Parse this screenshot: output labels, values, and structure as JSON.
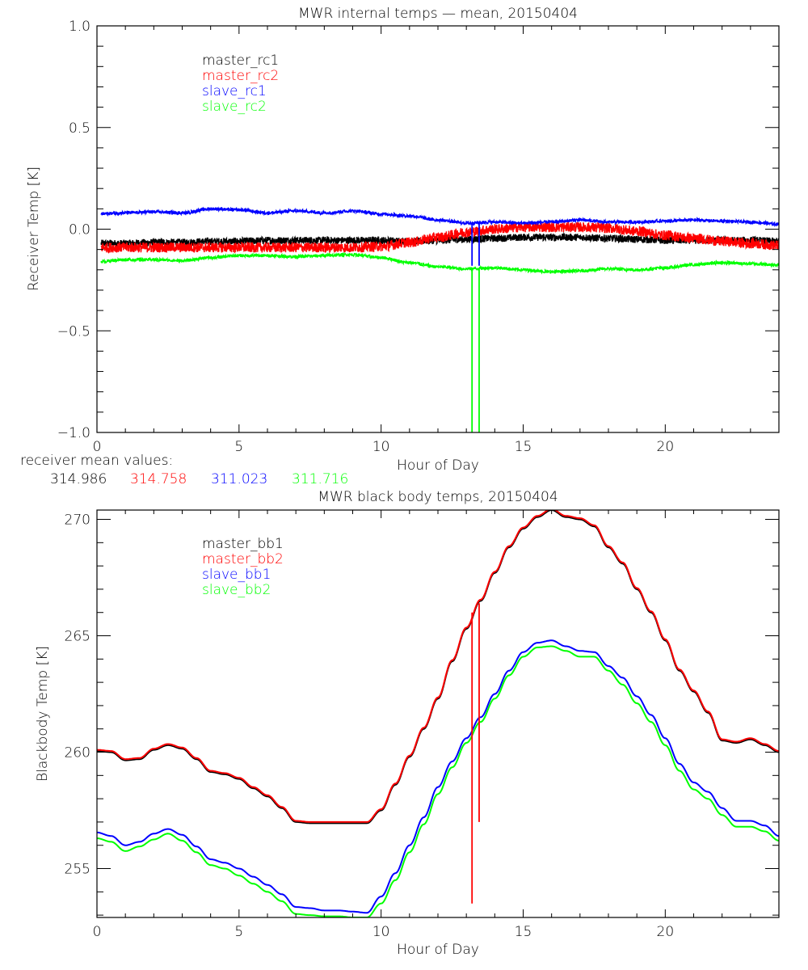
{
  "chart_data": [
    {
      "type": "line",
      "title": "MWR internal temps — mean, 20150404",
      "xlabel": "Hour of Day",
      "ylabel": "Receiver Temp [K]",
      "xlim": [
        0,
        24
      ],
      "ylim": [
        -1.0,
        1.0
      ],
      "xticks": [
        0,
        5,
        10,
        15,
        20
      ],
      "xtick_labels": [
        "0",
        "5",
        "10",
        "15",
        "20"
      ],
      "yticks": [
        -1.0,
        -0.5,
        0.0,
        0.5,
        1.0
      ],
      "ytick_labels": [
        "−1.0",
        "−0.5",
        "0.0",
        "0.5",
        "1.0"
      ],
      "x_minor_step": 1,
      "y_minor_step": 0.1,
      "grid": false,
      "legend_position": "top-left",
      "noise_band": 0.02,
      "x": [
        0,
        1,
        2,
        3,
        4,
        5,
        6,
        7,
        8,
        9,
        10,
        11,
        12,
        13,
        14,
        15,
        16,
        17,
        18,
        19,
        20,
        21,
        22,
        23,
        24
      ],
      "series": [
        {
          "name": "master_rc1",
          "color": "#000000",
          "noise": 0.018,
          "values": [
            -0.07,
            -0.07,
            -0.065,
            -0.065,
            -0.06,
            -0.06,
            -0.055,
            -0.055,
            -0.055,
            -0.055,
            -0.055,
            -0.06,
            -0.055,
            -0.05,
            -0.045,
            -0.04,
            -0.04,
            -0.04,
            -0.045,
            -0.05,
            -0.055,
            -0.055,
            -0.055,
            -0.055,
            -0.06
          ]
        },
        {
          "name": "master_rc2",
          "color": "#ff0000",
          "noise": 0.025,
          "values": [
            -0.09,
            -0.09,
            -0.09,
            -0.09,
            -0.09,
            -0.09,
            -0.09,
            -0.09,
            -0.09,
            -0.09,
            -0.085,
            -0.065,
            -0.04,
            -0.015,
            0.0,
            0.01,
            0.01,
            0.01,
            0.005,
            -0.01,
            -0.03,
            -0.045,
            -0.06,
            -0.07,
            -0.08
          ]
        },
        {
          "name": "slave_rc1",
          "color": "#0000ff",
          "noise": 0.008,
          "values": [
            0.075,
            0.08,
            0.085,
            0.08,
            0.1,
            0.095,
            0.08,
            0.09,
            0.08,
            0.09,
            0.075,
            0.065,
            0.045,
            0.03,
            0.035,
            0.03,
            0.035,
            0.045,
            0.035,
            0.035,
            0.04,
            0.045,
            0.04,
            0.035,
            0.025
          ]
        },
        {
          "name": "slave_rc2",
          "color": "#00ff00",
          "noise": 0.008,
          "values": [
            -0.16,
            -0.15,
            -0.15,
            -0.155,
            -0.14,
            -0.13,
            -0.13,
            -0.135,
            -0.13,
            -0.125,
            -0.14,
            -0.165,
            -0.185,
            -0.195,
            -0.19,
            -0.2,
            -0.21,
            -0.205,
            -0.195,
            -0.2,
            -0.19,
            -0.175,
            -0.165,
            -0.17,
            -0.175
          ]
        }
      ],
      "spikes": [
        {
          "series": "slave_rc1",
          "x": 13.2,
          "from": 0.03,
          "to": -0.18
        },
        {
          "series": "slave_rc1",
          "x": 13.45,
          "from": 0.03,
          "to": -0.18
        },
        {
          "series": "slave_rc2",
          "x": 13.2,
          "from": -0.19,
          "to": -1.0
        },
        {
          "series": "slave_rc2",
          "x": 13.45,
          "from": -0.19,
          "to": -1.0
        }
      ],
      "annotation": {
        "label": "receiver mean values:",
        "values": [
          {
            "text": "314.986",
            "color": "#000000"
          },
          {
            "text": "314.758",
            "color": "#ff0000"
          },
          {
            "text": "311.023",
            "color": "#0000ff"
          },
          {
            "text": "311.716",
            "color": "#00ff00"
          }
        ]
      }
    },
    {
      "type": "line",
      "title": "MWR black body temps, 20150404",
      "xlabel": "Hour of Day",
      "ylabel": "Blackbody Temp [K]",
      "xlim": [
        0,
        24
      ],
      "ylim": [
        252.9,
        270.4
      ],
      "xticks": [
        0,
        5,
        10,
        15,
        20
      ],
      "xtick_labels": [
        "0",
        "5",
        "10",
        "15",
        "20"
      ],
      "yticks": [
        255,
        260,
        265,
        270
      ],
      "ytick_labels": [
        "255",
        "260",
        "265",
        "270"
      ],
      "x_minor_step": 1,
      "y_minor_step": 1,
      "grid": false,
      "legend_position": "top-left",
      "x": [
        0,
        0.5,
        1,
        1.5,
        2,
        2.5,
        3,
        3.5,
        4,
        4.5,
        5,
        5.5,
        6,
        6.5,
        7,
        7.5,
        8,
        8.5,
        9,
        9.5,
        10,
        10.5,
        11,
        11.5,
        12,
        12.5,
        13,
        13.5,
        14,
        14.5,
        15,
        15.5,
        16,
        16.5,
        17,
        17.5,
        18,
        18.5,
        19,
        19.5,
        20,
        20.5,
        21,
        21.5,
        22,
        22.5,
        23,
        23.5,
        24
      ],
      "series": [
        {
          "name": "master_bb1",
          "color": "#000000",
          "values": [
            260.05,
            260.0,
            259.65,
            259.7,
            260.1,
            260.3,
            260.15,
            259.7,
            259.15,
            259.05,
            258.85,
            258.45,
            258.1,
            257.6,
            257.0,
            256.95,
            256.95,
            256.95,
            256.95,
            256.95,
            257.5,
            258.6,
            259.8,
            261.0,
            262.3,
            263.9,
            265.3,
            266.5,
            267.7,
            268.8,
            269.6,
            270.1,
            270.4,
            270.1,
            270.0,
            269.7,
            268.8,
            268.1,
            267.0,
            266.0,
            264.8,
            263.5,
            262.6,
            261.7,
            260.5,
            260.4,
            260.55,
            260.3,
            260.0
          ]
        },
        {
          "name": "master_bb2",
          "color": "#ff0000",
          "values": [
            260.1,
            260.05,
            259.7,
            259.75,
            260.15,
            260.35,
            260.2,
            259.75,
            259.2,
            259.1,
            258.9,
            258.5,
            258.15,
            257.65,
            257.05,
            257.0,
            257.0,
            257.0,
            257.0,
            257.0,
            257.55,
            258.65,
            259.85,
            261.05,
            262.35,
            263.95,
            265.35,
            266.55,
            267.75,
            268.85,
            269.65,
            270.15,
            270.45,
            270.15,
            270.05,
            269.75,
            268.85,
            268.15,
            267.05,
            266.05,
            264.85,
            263.55,
            262.65,
            261.75,
            260.55,
            260.45,
            260.6,
            260.35,
            260.05
          ]
        },
        {
          "name": "slave_bb1",
          "color": "#0000ff",
          "values": [
            256.55,
            256.4,
            256.0,
            256.15,
            256.5,
            256.7,
            256.45,
            255.95,
            255.4,
            255.25,
            255.0,
            254.65,
            254.3,
            253.9,
            253.35,
            253.3,
            253.2,
            253.2,
            253.15,
            253.1,
            253.8,
            254.8,
            256.0,
            257.2,
            258.5,
            259.6,
            260.6,
            261.5,
            262.5,
            263.5,
            264.3,
            264.7,
            264.8,
            264.55,
            264.35,
            264.3,
            263.7,
            263.2,
            262.4,
            261.6,
            260.6,
            259.5,
            258.7,
            258.3,
            257.6,
            257.05,
            257.05,
            256.85,
            256.4
          ]
        },
        {
          "name": "slave_bb2",
          "color": "#00ff00",
          "values": [
            256.3,
            256.15,
            255.75,
            255.95,
            256.25,
            256.5,
            256.2,
            255.7,
            255.15,
            255.0,
            254.7,
            254.35,
            254.0,
            253.6,
            253.05,
            253.0,
            252.95,
            252.95,
            252.9,
            252.9,
            253.5,
            254.5,
            255.7,
            256.9,
            258.2,
            259.35,
            260.4,
            261.3,
            262.3,
            263.3,
            264.1,
            264.5,
            264.55,
            264.35,
            264.1,
            264.1,
            263.5,
            262.9,
            262.1,
            261.3,
            260.3,
            259.2,
            258.4,
            258.0,
            257.3,
            256.8,
            256.8,
            256.6,
            256.2
          ]
        }
      ],
      "spikes": [
        {
          "series": "master_bb2",
          "x": 13.2,
          "from": 266.0,
          "to": 253.5
        },
        {
          "series": "master_bb2",
          "x": 13.45,
          "from": 266.4,
          "to": 257.0
        }
      ]
    }
  ]
}
